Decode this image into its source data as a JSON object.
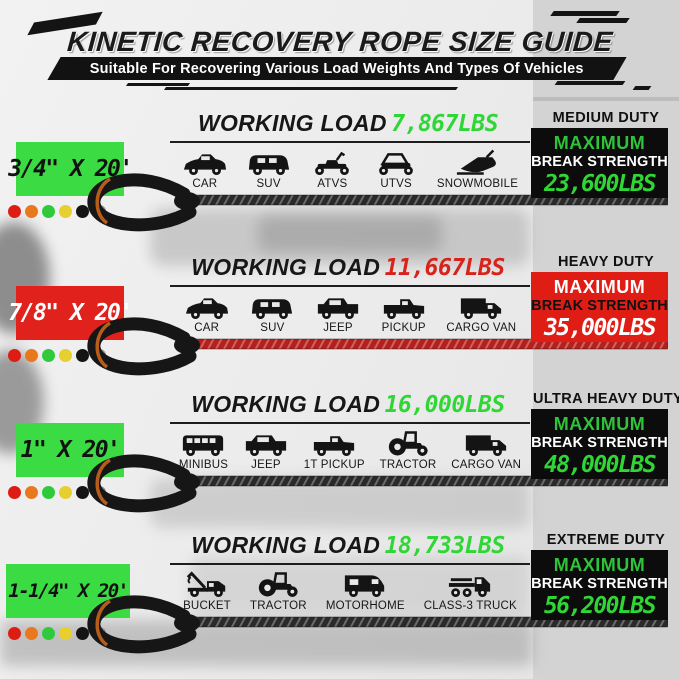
{
  "header": {
    "title": "KINETIC RECOVERY ROPE SIZE GUIDE",
    "subtitle": "Suitable For Recovering Various Load Weights And Types Of Vehicles"
  },
  "colors": {
    "accent_green": "#3bdc43",
    "accent_red": "#e1211c",
    "lcd_green": "#2fd636",
    "lcd_red": "#d8231d",
    "panel_black": "#0c0c0c",
    "band_gray": "#d3d3d3"
  },
  "rows": [
    {
      "size": "3/4\" X 20'",
      "size_box_bg": "#3bdc43",
      "size_box_text": "#111111",
      "working_load_label": "WORKING LOAD",
      "working_load_value": "7,867LBS",
      "working_load_color": "#2fd636",
      "vehicles": [
        {
          "icon": "car-icon",
          "label": "CAR"
        },
        {
          "icon": "suv-icon",
          "label": "SUV"
        },
        {
          "icon": "atv-icon",
          "label": "ATVS"
        },
        {
          "icon": "utv-icon",
          "label": "UTVS"
        },
        {
          "icon": "snowmobile-icon",
          "label": "SNOWMOBILE"
        }
      ],
      "duty": "MEDIUM DUTY",
      "strength": {
        "bg": "#0c0c0c",
        "line1": "MAXIMUM",
        "line1_color": "#2ec33b",
        "line2": "BREAK STRENGTH",
        "line2_color": "#ffffff",
        "value": "23,600LBS",
        "value_color": "#2fd636"
      },
      "rope_color": "#2a2a2a",
      "dots": [
        "#dd1d14",
        "#e8781e",
        "#2fc93c",
        "#e6cf2e",
        "#141414",
        "#8a8a8a"
      ]
    },
    {
      "size": "7/8\" X 20'",
      "size_box_bg": "#e1211c",
      "size_box_text": "#ffffff",
      "working_load_label": "WORKING LOAD",
      "working_load_value": "11,667LBS",
      "working_load_color": "#d8231d",
      "vehicles": [
        {
          "icon": "car-icon",
          "label": "CAR"
        },
        {
          "icon": "suv-icon",
          "label": "SUV"
        },
        {
          "icon": "jeep-icon",
          "label": "JEEP"
        },
        {
          "icon": "pickup-icon",
          "label": "PICKUP"
        },
        {
          "icon": "cargo-van-icon",
          "label": "CARGO VAN"
        }
      ],
      "duty": "HEAVY DUTY",
      "strength": {
        "bg": "#e01d15",
        "line1": "MAXIMUM",
        "line1_color": "#ffffff",
        "line2": "BREAK STRENGTH",
        "line2_color": "#111111",
        "value": "35,000LBS",
        "value_color": "#ffffff"
      },
      "rope_color": "#b5201c",
      "dots": [
        "#dd1d14",
        "#e8781e",
        "#2fc93c",
        "#e6cf2e",
        "#141414",
        "#8a8a8a"
      ]
    },
    {
      "size": "1\" X 20'",
      "size_box_bg": "#3bdc43",
      "size_box_text": "#111111",
      "working_load_label": "WORKING LOAD",
      "working_load_value": "16,000LBS",
      "working_load_color": "#2fd636",
      "vehicles": [
        {
          "icon": "minibus-icon",
          "label": "MINIBUS"
        },
        {
          "icon": "jeep-icon",
          "label": "JEEP"
        },
        {
          "icon": "pickup-icon",
          "label": "1T PICKUP"
        },
        {
          "icon": "tractor-icon",
          "label": "TRACTOR"
        },
        {
          "icon": "cargo-van-icon",
          "label": "CARGO VAN"
        }
      ],
      "duty": "ULTRA HEAVY DUTY",
      "strength": {
        "bg": "#0c0c0c",
        "line1": "MAXIMUM",
        "line1_color": "#2ec33b",
        "line2": "BREAK STRENGTH",
        "line2_color": "#ffffff",
        "value": "48,000LBS",
        "value_color": "#2fd636"
      },
      "rope_color": "#2a2a2a",
      "dots": [
        "#dd1d14",
        "#e8781e",
        "#2fc93c",
        "#e6cf2e",
        "#141414",
        "#8a8a8a"
      ]
    },
    {
      "size": "1-1/4\" X 20'",
      "size_box_bg": "#3bdc43",
      "size_box_text": "#111111",
      "working_load_label": "WORKING LOAD",
      "working_load_value": "18,733LBS",
      "working_load_color": "#2fd636",
      "vehicles": [
        {
          "icon": "tow-truck-icon",
          "label": "BUCKET"
        },
        {
          "icon": "tractor-icon",
          "label": "TRACTOR"
        },
        {
          "icon": "motorhome-icon",
          "label": "MOTORHOME"
        },
        {
          "icon": "flatbed-truck-icon",
          "label": "CLASS-3 TRUCK"
        }
      ],
      "duty": "EXTREME DUTY",
      "strength": {
        "bg": "#0c0c0c",
        "line1": "MAXIMUM",
        "line1_color": "#2ec33b",
        "line2": "BREAK STRENGTH",
        "line2_color": "#ffffff",
        "value": "56,200LBS",
        "value_color": "#2fd636"
      },
      "rope_color": "#2a2a2a",
      "dots": [
        "#dd1d14",
        "#e8781e",
        "#2fc93c",
        "#e6cf2e",
        "#141414",
        "#8a8a8a"
      ]
    }
  ]
}
